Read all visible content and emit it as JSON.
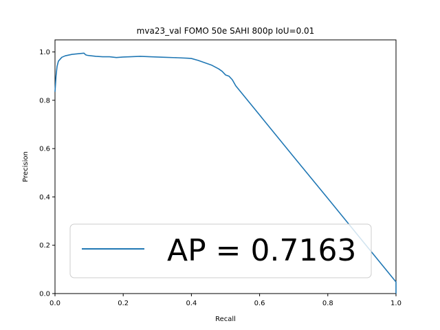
{
  "chart_data": {
    "type": "line",
    "title": "mva23_val FOMO 50e SAHI 800p IoU=0.01",
    "xlabel": "Recall",
    "ylabel": "Precision",
    "xlim": [
      0.0,
      1.0
    ],
    "ylim": [
      0.0,
      1.05
    ],
    "xticks": [
      "0.0",
      "0.2",
      "0.4",
      "0.6",
      "0.8",
      "1.0"
    ],
    "yticks": [
      "0.0",
      "0.2",
      "0.4",
      "0.6",
      "0.8",
      "1.0"
    ],
    "grid": false,
    "legend_position": "lower-left",
    "series": [
      {
        "name": "AP = 0.7163",
        "color": "#1f77b4",
        "points": [
          [
            0.0,
            0.835
          ],
          [
            0.003,
            0.9
          ],
          [
            0.006,
            0.94
          ],
          [
            0.01,
            0.962
          ],
          [
            0.02,
            0.978
          ],
          [
            0.03,
            0.984
          ],
          [
            0.05,
            0.99
          ],
          [
            0.07,
            0.993
          ],
          [
            0.085,
            0.995
          ],
          [
            0.09,
            0.988
          ],
          [
            0.095,
            0.986
          ],
          [
            0.1,
            0.985
          ],
          [
            0.12,
            0.982
          ],
          [
            0.14,
            0.98
          ],
          [
            0.16,
            0.98
          ],
          [
            0.18,
            0.977
          ],
          [
            0.2,
            0.979
          ],
          [
            0.22,
            0.98
          ],
          [
            0.25,
            0.982
          ],
          [
            0.28,
            0.98
          ],
          [
            0.32,
            0.978
          ],
          [
            0.36,
            0.976
          ],
          [
            0.39,
            0.974
          ],
          [
            0.4,
            0.973
          ],
          [
            0.42,
            0.965
          ],
          [
            0.44,
            0.955
          ],
          [
            0.46,
            0.945
          ],
          [
            0.48,
            0.93
          ],
          [
            0.49,
            0.92
          ],
          [
            0.5,
            0.905
          ],
          [
            0.51,
            0.9
          ],
          [
            0.52,
            0.885
          ],
          [
            0.53,
            0.86
          ],
          [
            0.6,
            0.739
          ],
          [
            0.7,
            0.566
          ],
          [
            0.8,
            0.394
          ],
          [
            0.9,
            0.221
          ],
          [
            1.0,
            0.048
          ],
          [
            1.0,
            0.0
          ]
        ]
      }
    ]
  }
}
